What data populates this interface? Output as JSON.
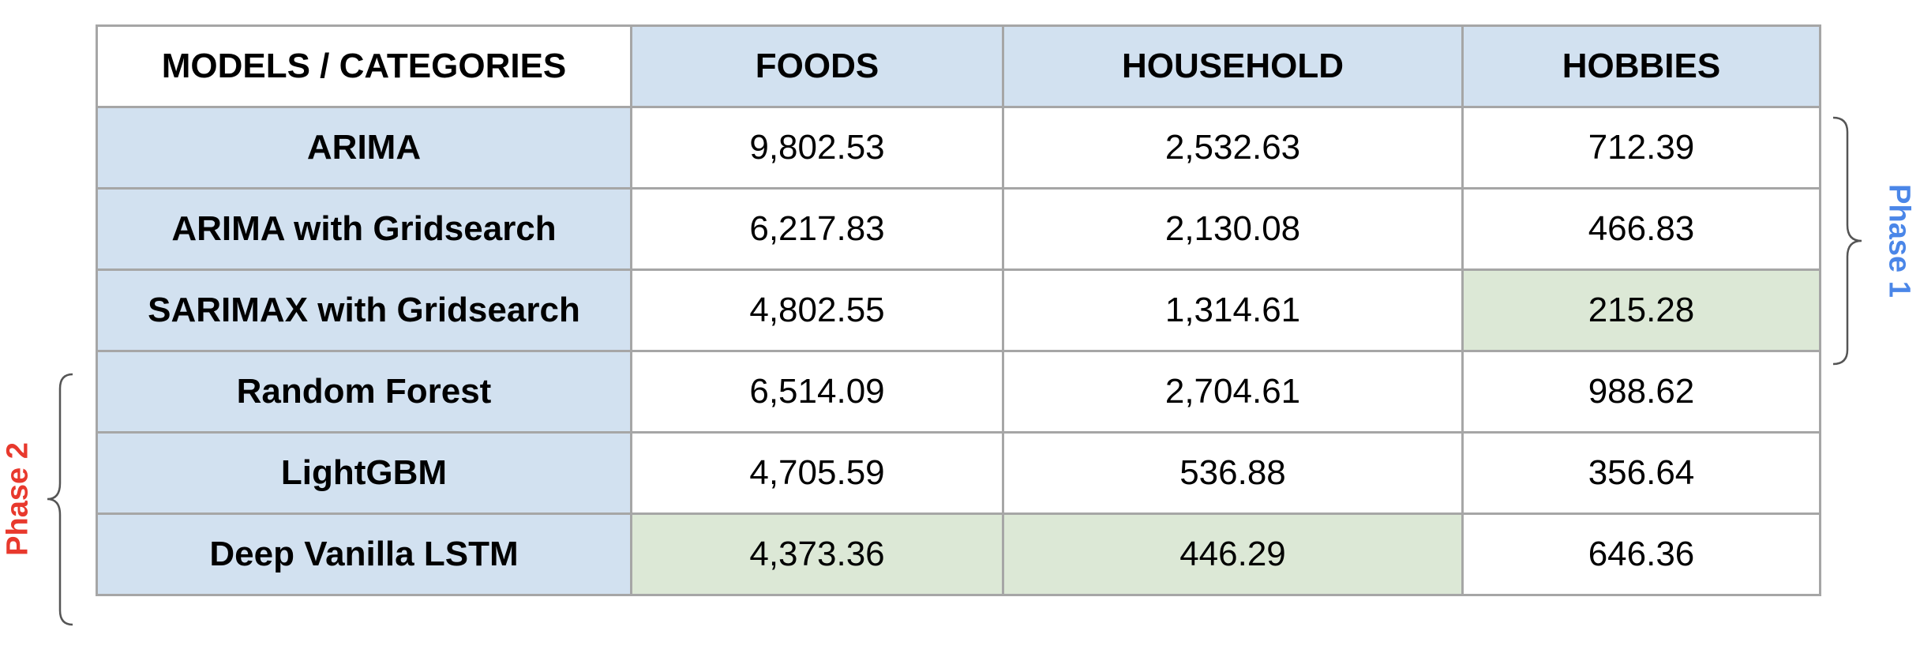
{
  "table": {
    "corner_label": "MODELS / CATEGORIES",
    "columns": [
      "FOODS",
      "HOUSEHOLD",
      "HOBBIES"
    ],
    "rows": [
      {
        "model": "ARIMA",
        "values": [
          "9,802.53",
          "2,532.63",
          "712.39"
        ]
      },
      {
        "model": "ARIMA with Gridsearch",
        "values": [
          "6,217.83",
          "2,130.08",
          "466.83"
        ]
      },
      {
        "model": "SARIMAX with Gridsearch",
        "values": [
          "4,802.55",
          "1,314.61",
          "215.28"
        ]
      },
      {
        "model": "Random Forest",
        "values": [
          "6,514.09",
          "2,704.61",
          "988.62"
        ]
      },
      {
        "model": "LightGBM",
        "values": [
          "4,705.59",
          "536.88",
          "356.64"
        ]
      },
      {
        "model": "Deep Vanilla LSTM",
        "values": [
          "4,373.36",
          "446.29",
          "646.36"
        ]
      }
    ],
    "colors": {
      "header_fill": "#d2e1f0",
      "best_value_fill": "#dce8d6",
      "border": "#a6a6a6"
    }
  },
  "phases": {
    "phase1": {
      "label": "Phase 1",
      "color": "#4a86e8"
    },
    "phase2": {
      "label": "Phase 2",
      "color": "#e8392d"
    }
  }
}
